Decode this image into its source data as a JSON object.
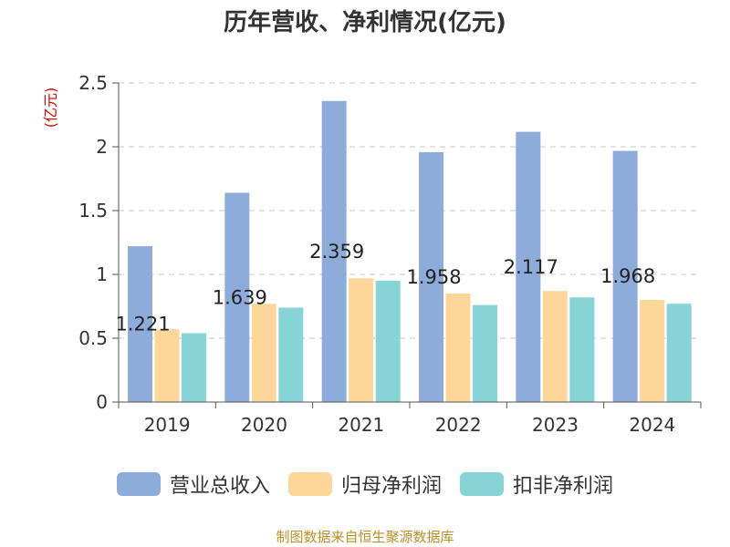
{
  "chart_data": {
    "type": "bar",
    "title": "历年营收、净利情况(亿元)",
    "ylabel": "(亿元)",
    "xlabel": "",
    "categories": [
      "2019",
      "2020",
      "2021",
      "2022",
      "2023",
      "2024"
    ],
    "ylim": [
      0,
      2.5
    ],
    "yticks": [
      "0",
      "0.5",
      "1",
      "1.5",
      "2",
      "2.5"
    ],
    "grid": true,
    "legend_position": "bottom",
    "series": [
      {
        "name": "营业总收入",
        "color": "#8eacd9",
        "values": [
          1.221,
          1.639,
          2.359,
          1.958,
          2.117,
          1.968
        ],
        "data_labels": [
          "1.221",
          "1.639",
          "2.359",
          "1.958",
          "2.117",
          "1.968"
        ]
      },
      {
        "name": "归母净利润",
        "color": "#ffd699",
        "values": [
          0.57,
          0.77,
          0.97,
          0.85,
          0.87,
          0.8
        ]
      },
      {
        "name": "扣非净利润",
        "color": "#86d4d6",
        "values": [
          0.54,
          0.74,
          0.95,
          0.76,
          0.82,
          0.77
        ]
      }
    ]
  },
  "footer": "制图数据来自恒生聚源数据库"
}
